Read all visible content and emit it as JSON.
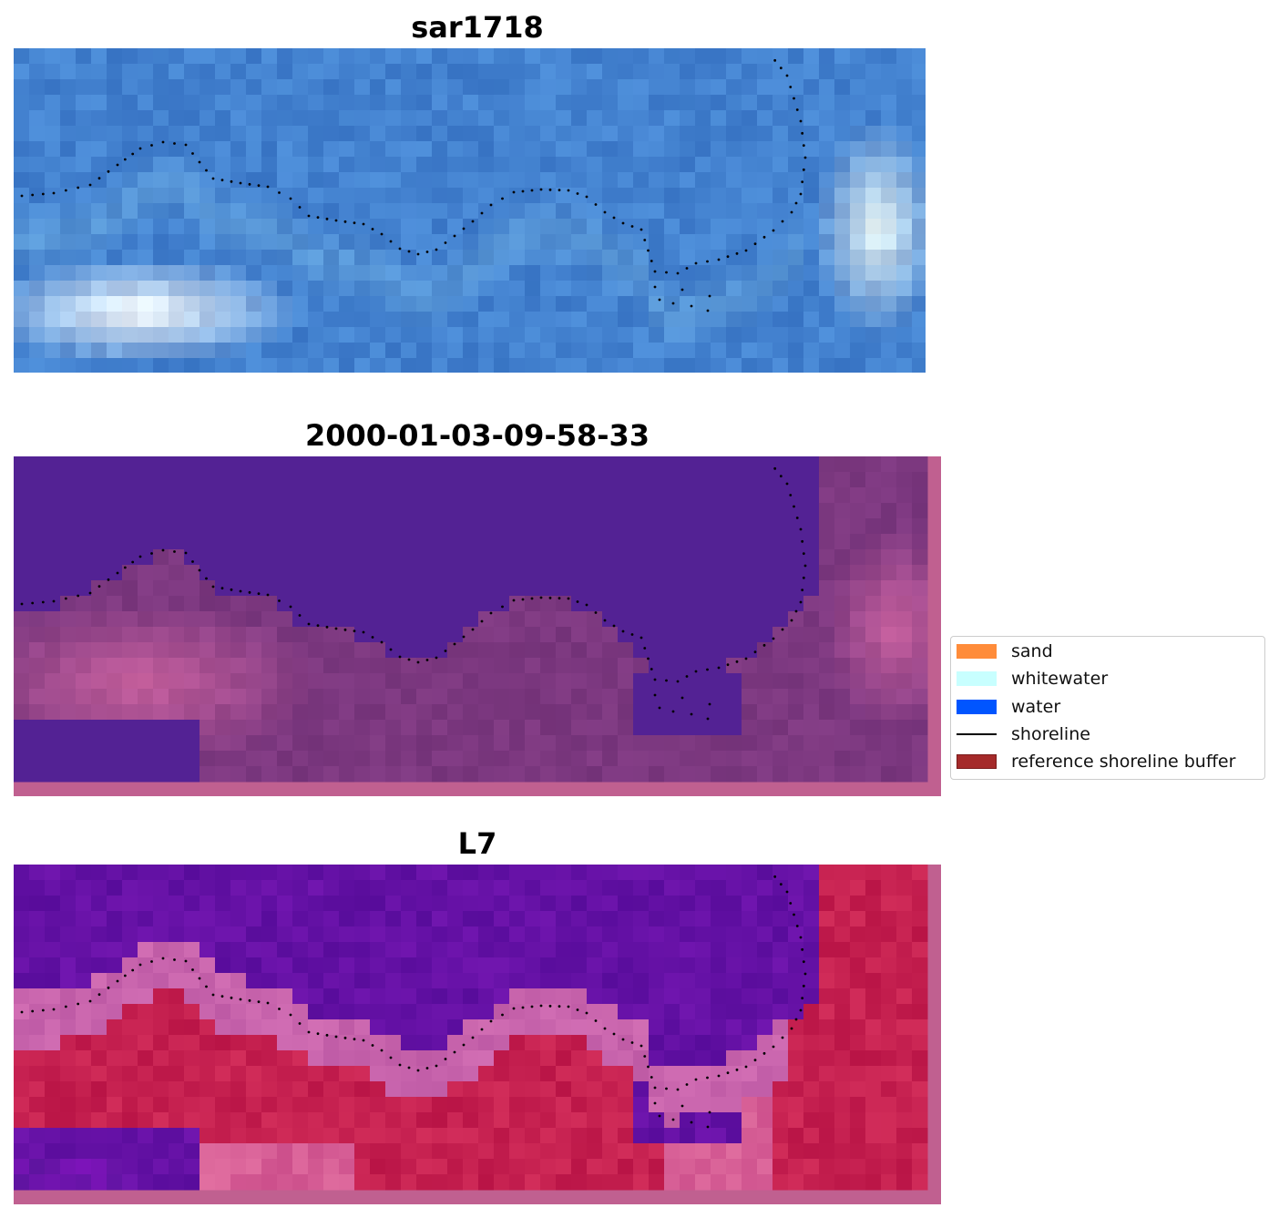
{
  "panels": [
    {
      "title": "sar1718",
      "kind": "rgb"
    },
    {
      "title": "2000-01-03-09-58-33",
      "kind": "classified"
    },
    {
      "title": "L7",
      "kind": "ndwi"
    }
  ],
  "legend": {
    "items": [
      {
        "label": "sand",
        "color": "#ff8c3a",
        "type": "patch"
      },
      {
        "label": "whitewater",
        "color": "#c8ffff",
        "type": "patch"
      },
      {
        "label": "water",
        "color": "#0055ff",
        "type": "patch"
      },
      {
        "label": "shoreline",
        "color": "#000000",
        "type": "line"
      },
      {
        "label": "reference shoreline buffer",
        "color": "#a52a2a",
        "type": "patch"
      }
    ]
  },
  "colors": {
    "rgb_water": "#3a78c8",
    "class_water": "#532294",
    "class_land": "#7a3a82",
    "ndwi_water": "#5a12a0",
    "ndwi_land": "#c01848",
    "buffer": "#c06090",
    "shoreline": "#000000"
  }
}
